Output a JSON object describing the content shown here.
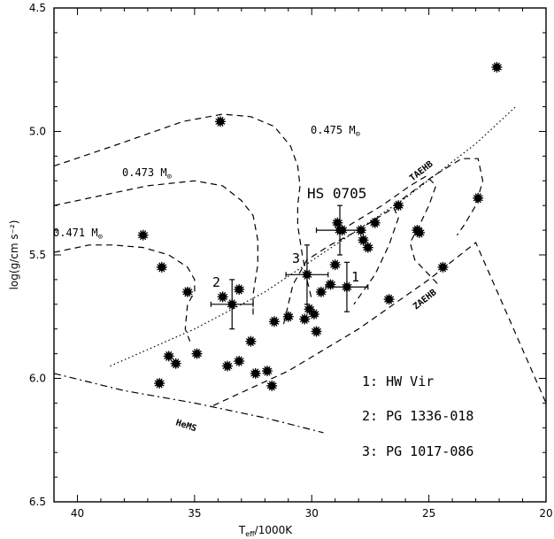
{
  "chart_data": {
    "type": "scatter",
    "xlabel_main": "T",
    "xlabel_sub": "eff",
    "xlabel_rest": "/1000K",
    "ylabel": "log(g/cm s⁻²)",
    "xlim": [
      41,
      20
    ],
    "ylim": [
      6.5,
      4.5
    ],
    "x_ticks": [
      "40",
      "35",
      "30",
      "25",
      "20"
    ],
    "y_ticks": [
      "4.5",
      "5.0",
      "5.5",
      "6.0",
      "6.5"
    ],
    "points": [
      {
        "x": 22.1,
        "y": 4.74
      },
      {
        "x": 33.9,
        "y": 4.96
      },
      {
        "x": 37.2,
        "y": 5.42
      },
      {
        "x": 36.4,
        "y": 5.55
      },
      {
        "x": 35.3,
        "y": 5.65
      },
      {
        "x": 33.8,
        "y": 5.67
      },
      {
        "x": 33.1,
        "y": 5.64
      },
      {
        "x": 36.1,
        "y": 5.91
      },
      {
        "x": 35.8,
        "y": 5.94
      },
      {
        "x": 34.9,
        "y": 5.9
      },
      {
        "x": 33.6,
        "y": 5.95
      },
      {
        "x": 33.1,
        "y": 5.93
      },
      {
        "x": 36.5,
        "y": 6.02
      },
      {
        "x": 32.4,
        "y": 5.98
      },
      {
        "x": 31.9,
        "y": 5.97
      },
      {
        "x": 31.7,
        "y": 6.03
      },
      {
        "x": 32.6,
        "y": 5.85
      },
      {
        "x": 31.6,
        "y": 5.77
      },
      {
        "x": 31.0,
        "y": 5.75
      },
      {
        "x": 30.3,
        "y": 5.76
      },
      {
        "x": 30.1,
        "y": 5.72
      },
      {
        "x": 29.9,
        "y": 5.74
      },
      {
        "x": 29.8,
        "y": 5.81
      },
      {
        "x": 29.6,
        "y": 5.65
      },
      {
        "x": 29.2,
        "y": 5.62
      },
      {
        "x": 29.0,
        "y": 5.54
      },
      {
        "x": 28.9,
        "y": 5.37
      },
      {
        "x": 28.7,
        "y": 5.4
      },
      {
        "x": 27.9,
        "y": 5.4
      },
      {
        "x": 27.8,
        "y": 5.44
      },
      {
        "x": 27.6,
        "y": 5.47
      },
      {
        "x": 27.3,
        "y": 5.37
      },
      {
        "x": 26.3,
        "y": 5.3
      },
      {
        "x": 26.7,
        "y": 5.68
      },
      {
        "x": 25.5,
        "y": 5.4
      },
      {
        "x": 25.4,
        "y": 5.41
      },
      {
        "x": 24.4,
        "y": 5.55
      },
      {
        "x": 22.9,
        "y": 5.27
      }
    ],
    "error_points": [
      {
        "x": 33.4,
        "y": 5.7,
        "xerr": 0.9,
        "yerr": 0.1,
        "label": "2"
      },
      {
        "x": 30.2,
        "y": 5.58,
        "xerr": 0.9,
        "yerr": 0.12,
        "label": "3"
      },
      {
        "x": 28.5,
        "y": 5.63,
        "xerr": 0.9,
        "yerr": 0.1,
        "label": "1"
      },
      {
        "x": 28.8,
        "y": 5.4,
        "xerr": 1.0,
        "yerr": 0.1,
        "label": "HS 0705"
      }
    ],
    "curves": [
      {
        "name": "TAEHB",
        "style": "dotted",
        "points": [
          [
            38.6,
            5.95
          ],
          [
            35,
            5.8
          ],
          [
            32,
            5.65
          ],
          [
            29,
            5.46
          ],
          [
            26,
            5.27
          ],
          [
            23,
            5.05
          ],
          [
            21.3,
            4.9
          ]
        ]
      },
      {
        "name": "ZAEHB",
        "style": "dashed",
        "points": [
          [
            34.2,
            6.11
          ],
          [
            31,
            5.97
          ],
          [
            28,
            5.8
          ],
          [
            25,
            5.6
          ],
          [
            23,
            5.45
          ],
          [
            20,
            6.1
          ]
        ]
      },
      {
        "name": "HeMS",
        "style": "dashdot",
        "points": [
          [
            41,
            5.98
          ],
          [
            38,
            6.05
          ],
          [
            35,
            6.1
          ],
          [
            32,
            6.16
          ],
          [
            29.5,
            6.22
          ]
        ]
      },
      {
        "name": "0.475",
        "style": "dashed",
        "points": [
          [
            41,
            5.14
          ],
          [
            38.5,
            5.06
          ],
          [
            35.5,
            4.96
          ],
          [
            33.8,
            4.93
          ],
          [
            32.6,
            4.94
          ],
          [
            31.6,
            4.98
          ],
          [
            30.9,
            5.06
          ],
          [
            30.6,
            5.14
          ],
          [
            30.5,
            5.22
          ],
          [
            30.6,
            5.3
          ],
          [
            30.6,
            5.38
          ],
          [
            30.4,
            5.5
          ],
          [
            30.2,
            5.6
          ],
          [
            30.0,
            5.68
          ]
        ]
      },
      {
        "name": "0.473",
        "style": "dashed",
        "points": [
          [
            41,
            5.3
          ],
          [
            39,
            5.26
          ],
          [
            37,
            5.22
          ],
          [
            35,
            5.2
          ],
          [
            33.8,
            5.22
          ],
          [
            33,
            5.28
          ],
          [
            32.5,
            5.34
          ],
          [
            32.3,
            5.44
          ],
          [
            32.3,
            5.54
          ],
          [
            32.5,
            5.66
          ],
          [
            32.5,
            5.75
          ]
        ]
      },
      {
        "name": "0.471",
        "style": "dashed",
        "points": [
          [
            41,
            5.49
          ],
          [
            39.5,
            5.46
          ],
          [
            38.5,
            5.46
          ],
          [
            37.2,
            5.47
          ],
          [
            36.1,
            5.5
          ],
          [
            35.3,
            5.55
          ],
          [
            35.0,
            5.6
          ],
          [
            35.0,
            5.65
          ],
          [
            35.3,
            5.7
          ],
          [
            35.4,
            5.8
          ],
          [
            35.2,
            5.85
          ]
        ]
      },
      {
        "name": "loop-mid",
        "style": "dashed",
        "points": [
          [
            31.2,
            5.78
          ],
          [
            30.8,
            5.62
          ],
          [
            30.2,
            5.52
          ],
          [
            29.2,
            5.46
          ],
          [
            28.0,
            5.4
          ],
          [
            27.2,
            5.35
          ],
          [
            26.5,
            5.31
          ],
          [
            26.3,
            5.35
          ],
          [
            26.7,
            5.46
          ],
          [
            27.3,
            5.58
          ],
          [
            28.2,
            5.7
          ]
        ]
      },
      {
        "name": "loop-right",
        "style": "dashed",
        "points": [
          [
            28.4,
            5.38
          ],
          [
            27.0,
            5.3
          ],
          [
            25.8,
            5.22
          ],
          [
            25.1,
            5.18
          ],
          [
            24.7,
            5.22
          ],
          [
            25.0,
            5.3
          ],
          [
            25.4,
            5.38
          ],
          [
            25.8,
            5.45
          ],
          [
            25.6,
            5.52
          ],
          [
            25.0,
            5.58
          ],
          [
            24.6,
            5.62
          ]
        ]
      },
      {
        "name": "loop-far",
        "style": "dashed",
        "points": [
          [
            26.5,
            5.3
          ],
          [
            24.8,
            5.18
          ],
          [
            23.6,
            5.11
          ],
          [
            22.9,
            5.11
          ],
          [
            22.7,
            5.2
          ],
          [
            23.0,
            5.3
          ],
          [
            23.5,
            5.38
          ],
          [
            23.8,
            5.42
          ]
        ]
      }
    ],
    "annotations": {
      "m475": "0.475 M",
      "m473": "0.473 M",
      "m471": "0.471 M",
      "taehb": "TAEHB",
      "zaehb": "ZAEHB",
      "hems": "HeMS",
      "hs0705": "HS 0705",
      "lab1": "1",
      "lab2": "2",
      "lab3": "3",
      "legend1": "1: HW Vir",
      "legend2": "2: PG 1336-018",
      "legend3": "3: PG 1017-086"
    }
  }
}
